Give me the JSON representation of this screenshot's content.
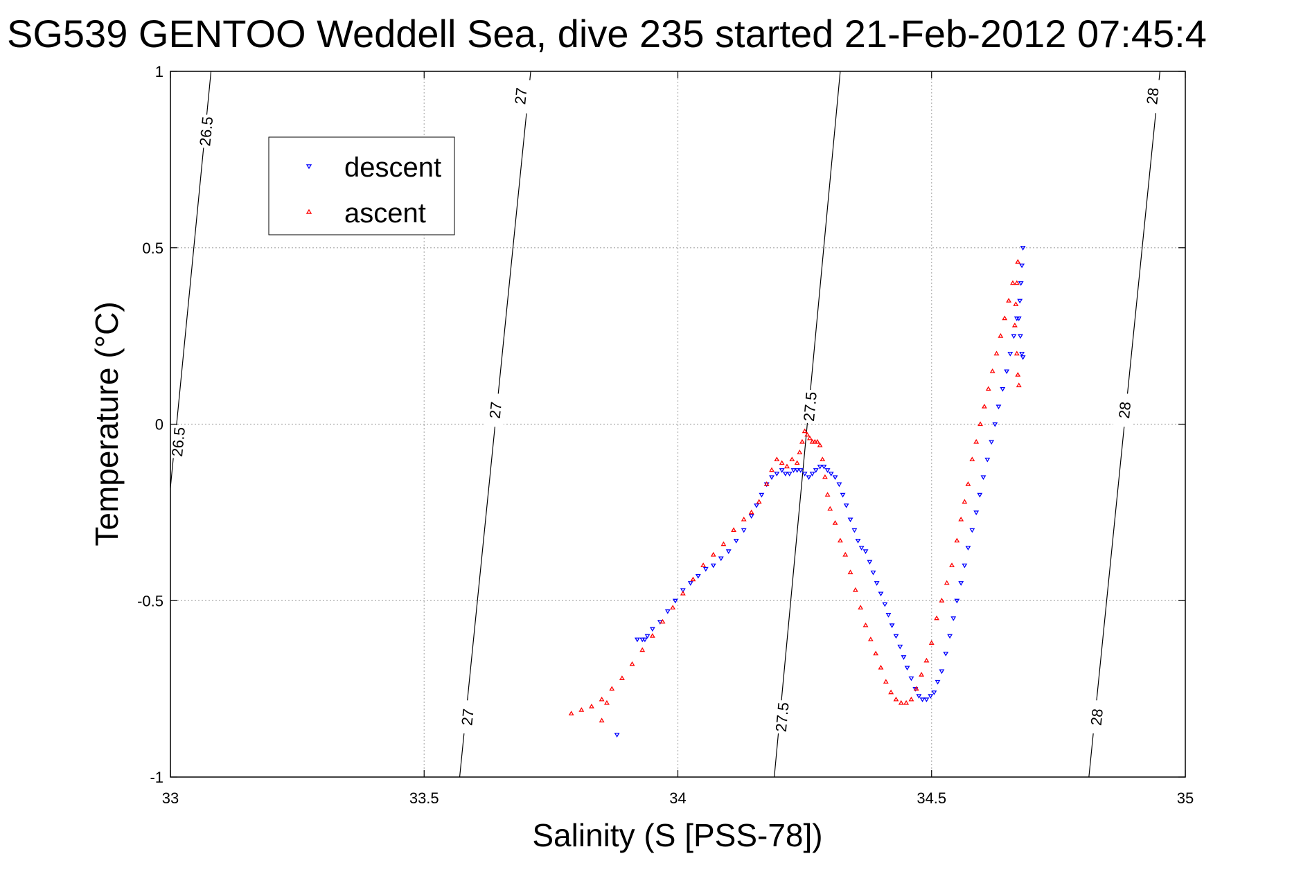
{
  "chart_data": {
    "type": "scatter",
    "title": "SG539 GENTOO Weddell Sea, dive 235 started 21-Feb-2012 07:45:4",
    "xlabel": "Salinity (S [PSS-78])",
    "ylabel": "Temperature (°C)",
    "xlim": [
      33,
      35
    ],
    "ylim": [
      -1,
      1
    ],
    "x_ticks": [
      "33",
      "33.5",
      "34",
      "34.5",
      "35"
    ],
    "y_ticks": [
      "-1",
      "-0.5",
      "0",
      "0.5",
      "1"
    ],
    "grid": true,
    "legend_position": "top-left",
    "density_contours": [
      {
        "value": "26.5",
        "points": [
          [
            33.0,
            -0.18
          ],
          [
            33.08,
            1.0
          ]
        ],
        "labels": [
          {
            "text": "26.5",
            "x": 33.015,
            "y": -0.05
          },
          {
            "text": "26.5",
            "x": 33.07,
            "y": 0.83
          }
        ]
      },
      {
        "value": "27",
        "points": [
          [
            33.57,
            -1.0
          ],
          [
            33.71,
            1.0
          ]
        ],
        "labels": [
          {
            "text": "27",
            "x": 33.585,
            "y": -0.83
          },
          {
            "text": "27",
            "x": 33.64,
            "y": 0.04
          },
          {
            "text": "27",
            "x": 33.69,
            "y": 0.93
          }
        ]
      },
      {
        "value": "27.5",
        "points": [
          [
            34.19,
            -1.0
          ],
          [
            34.32,
            1.0
          ]
        ],
        "labels": [
          {
            "text": "27.5",
            "x": 34.205,
            "y": -0.83
          },
          {
            "text": "27.5",
            "x": 34.26,
            "y": 0.05
          }
        ]
      },
      {
        "value": "28",
        "points": [
          [
            34.81,
            -1.0
          ],
          [
            34.95,
            1.0
          ]
        ],
        "labels": [
          {
            "text": "28",
            "x": 34.825,
            "y": -0.83
          },
          {
            "text": "28",
            "x": 34.88,
            "y": 0.04
          },
          {
            "text": "28",
            "x": 34.935,
            "y": 0.93
          }
        ]
      }
    ],
    "series": [
      {
        "name": "descent",
        "color": "#0000ff",
        "marker": "triangle-down",
        "x": [
          34.68,
          34.678,
          34.676,
          34.674,
          34.672,
          34.675,
          34.678,
          34.68,
          34.668,
          34.662,
          34.655,
          34.648,
          34.64,
          34.632,
          34.625,
          34.618,
          34.61,
          34.602,
          34.595,
          34.588,
          34.58,
          34.572,
          34.565,
          34.558,
          34.55,
          34.543,
          34.536,
          34.528,
          34.52,
          34.512,
          34.505,
          34.498,
          34.49,
          34.482,
          34.475,
          34.468,
          34.46,
          34.452,
          34.445,
          34.438,
          34.43,
          34.422,
          34.415,
          34.408,
          34.4,
          34.392,
          34.385,
          34.378,
          34.37,
          34.362,
          34.355,
          34.348,
          34.34,
          34.332,
          34.325,
          34.318,
          34.31,
          34.302,
          34.295,
          34.288,
          34.28,
          34.272,
          34.265,
          34.258,
          34.25,
          34.242,
          34.235,
          34.228,
          34.22,
          34.212,
          34.205,
          34.195,
          34.185,
          34.175,
          34.165,
          34.155,
          34.145,
          34.13,
          34.115,
          34.1,
          34.085,
          34.07,
          34.055,
          34.04,
          34.025,
          34.01,
          33.995,
          33.98,
          33.965,
          33.95,
          33.94,
          33.93,
          33.92,
          33.935,
          33.88
        ],
        "y": [
          0.5,
          0.45,
          0.4,
          0.35,
          0.3,
          0.25,
          0.2,
          0.19,
          0.3,
          0.25,
          0.2,
          0.15,
          0.1,
          0.05,
          0.0,
          -0.05,
          -0.1,
          -0.15,
          -0.2,
          -0.25,
          -0.3,
          -0.35,
          -0.4,
          -0.45,
          -0.5,
          -0.55,
          -0.6,
          -0.65,
          -0.7,
          -0.73,
          -0.76,
          -0.77,
          -0.78,
          -0.78,
          -0.77,
          -0.75,
          -0.72,
          -0.69,
          -0.66,
          -0.63,
          -0.6,
          -0.57,
          -0.54,
          -0.51,
          -0.48,
          -0.45,
          -0.42,
          -0.39,
          -0.36,
          -0.35,
          -0.33,
          -0.3,
          -0.27,
          -0.23,
          -0.2,
          -0.17,
          -0.15,
          -0.14,
          -0.13,
          -0.12,
          -0.12,
          -0.13,
          -0.14,
          -0.15,
          -0.14,
          -0.13,
          -0.13,
          -0.13,
          -0.14,
          -0.14,
          -0.13,
          -0.14,
          -0.15,
          -0.17,
          -0.2,
          -0.23,
          -0.26,
          -0.3,
          -0.33,
          -0.36,
          -0.38,
          -0.4,
          -0.41,
          -0.43,
          -0.45,
          -0.47,
          -0.5,
          -0.53,
          -0.56,
          -0.58,
          -0.6,
          -0.61,
          -0.61,
          -0.61,
          -0.88
        ]
      },
      {
        "name": "ascent",
        "color": "#ff0000",
        "marker": "triangle-up",
        "x": [
          34.67,
          34.668,
          34.666,
          34.664,
          34.668,
          34.67,
          34.672,
          34.66,
          34.652,
          34.644,
          34.636,
          34.628,
          34.62,
          34.612,
          34.604,
          34.596,
          34.588,
          34.58,
          34.572,
          34.565,
          34.558,
          34.55,
          34.54,
          34.53,
          34.52,
          34.51,
          34.5,
          34.49,
          34.48,
          34.47,
          34.46,
          34.45,
          34.44,
          34.43,
          34.42,
          34.41,
          34.4,
          34.39,
          34.38,
          34.37,
          34.36,
          34.35,
          34.34,
          34.33,
          34.32,
          34.31,
          34.3,
          34.295,
          34.29,
          34.285,
          34.28,
          34.275,
          34.27,
          34.265,
          34.26,
          34.255,
          34.25,
          34.245,
          34.24,
          34.235,
          34.225,
          34.215,
          34.205,
          34.195,
          34.185,
          34.175,
          34.16,
          34.145,
          34.13,
          34.11,
          34.09,
          34.07,
          34.05,
          34.03,
          34.01,
          33.99,
          33.97,
          33.95,
          33.93,
          33.91,
          33.89,
          33.87,
          33.85,
          33.83,
          33.81,
          33.79,
          33.85,
          33.86
        ],
        "y": [
          0.46,
          0.4,
          0.34,
          0.28,
          0.2,
          0.14,
          0.11,
          0.4,
          0.35,
          0.3,
          0.25,
          0.2,
          0.15,
          0.1,
          0.05,
          0.0,
          -0.05,
          -0.1,
          -0.17,
          -0.22,
          -0.27,
          -0.33,
          -0.4,
          -0.45,
          -0.5,
          -0.55,
          -0.62,
          -0.67,
          -0.71,
          -0.75,
          -0.78,
          -0.79,
          -0.79,
          -0.78,
          -0.76,
          -0.73,
          -0.69,
          -0.65,
          -0.61,
          -0.57,
          -0.52,
          -0.47,
          -0.42,
          -0.37,
          -0.33,
          -0.28,
          -0.24,
          -0.2,
          -0.15,
          -0.1,
          -0.06,
          -0.05,
          -0.05,
          -0.05,
          -0.04,
          -0.03,
          -0.02,
          -0.05,
          -0.08,
          -0.11,
          -0.1,
          -0.12,
          -0.11,
          -0.1,
          -0.13,
          -0.17,
          -0.22,
          -0.25,
          -0.27,
          -0.3,
          -0.34,
          -0.37,
          -0.4,
          -0.44,
          -0.48,
          -0.52,
          -0.56,
          -0.6,
          -0.64,
          -0.68,
          -0.72,
          -0.75,
          -0.78,
          -0.8,
          -0.81,
          -0.82,
          -0.84,
          -0.79
        ]
      }
    ]
  }
}
